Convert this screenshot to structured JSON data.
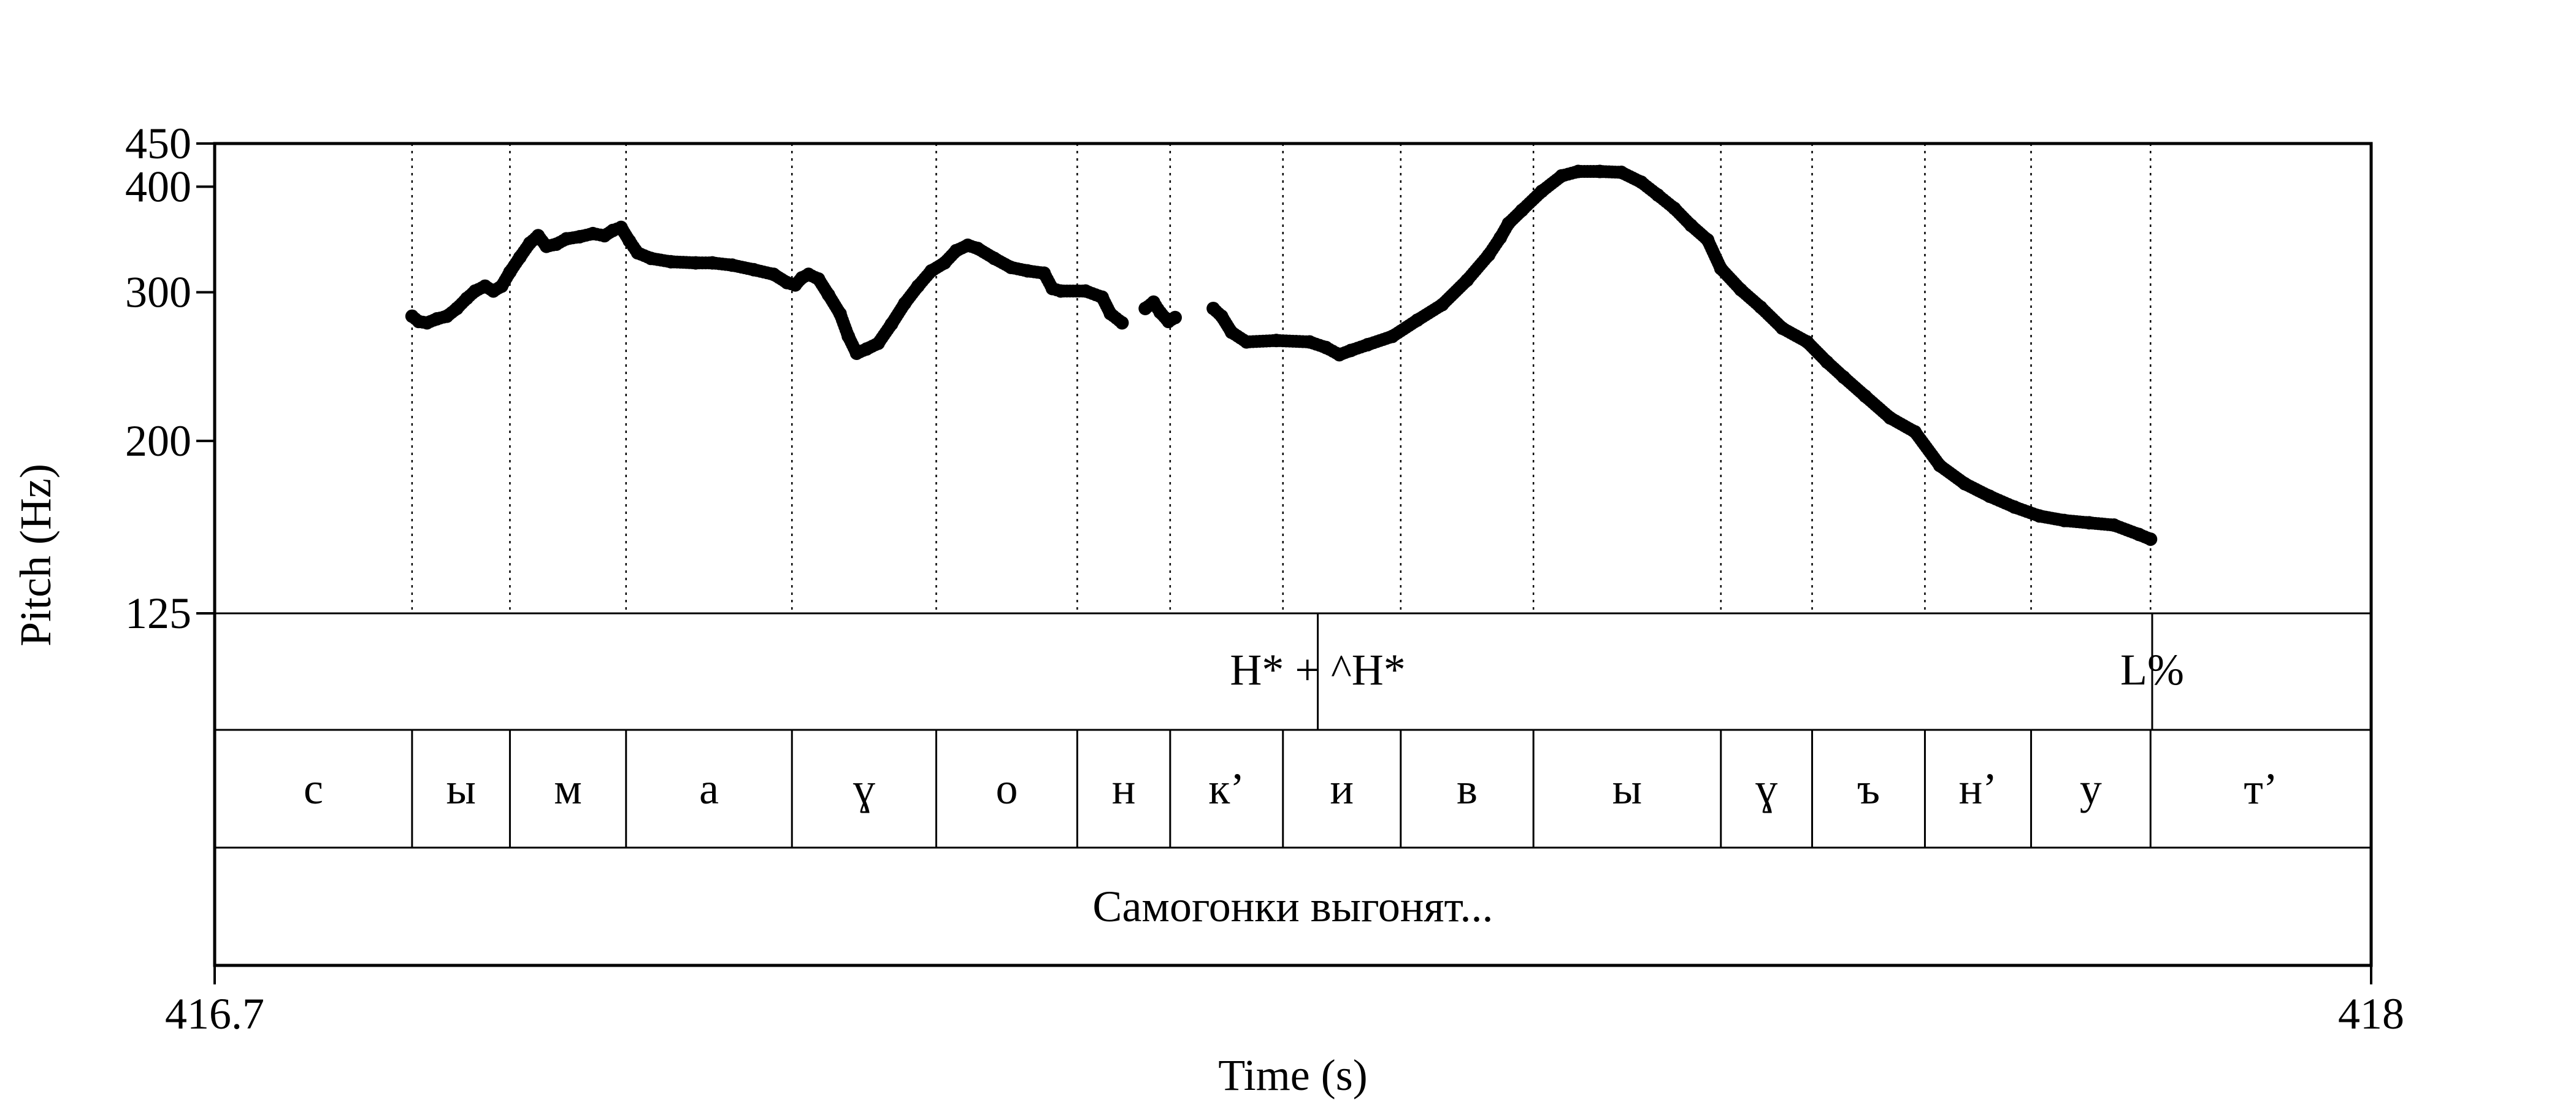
{
  "chart_data": {
    "type": "line",
    "style": "dotted pitch contour with TextGrid annotation tiers",
    "xlabel": "Time (s)",
    "ylabel": "Pitch (Hz)",
    "xlim": [
      416.7,
      418
    ],
    "x_tick_labels": [
      "416.7",
      "418"
    ],
    "ylim": [
      125,
      450
    ],
    "y_scale": "log",
    "y_ticks": [
      450,
      400,
      300,
      200,
      125
    ],
    "y_tick_labels": [
      "450",
      "400",
      "300",
      "200",
      "125"
    ],
    "grid": "dotted vertical lines at segment boundaries",
    "legend": "none",
    "series": [
      {
        "segments": [
          [
            [
              416.819,
              281
            ],
            [
              416.823,
              277
            ],
            [
              416.828,
              276
            ],
            [
              416.834,
              279
            ],
            [
              416.84,
              281
            ],
            [
              416.846,
              287
            ],
            [
              416.852,
              295
            ],
            [
              416.857,
              301
            ],
            [
              416.863,
              305
            ],
            [
              416.868,
              301
            ],
            [
              416.873,
              305
            ],
            [
              416.878,
              317
            ],
            [
              416.884,
              330
            ],
            [
              416.89,
              343
            ],
            [
              416.895,
              350
            ],
            [
              416.9,
              340
            ],
            [
              416.906,
              342
            ],
            [
              416.912,
              347
            ],
            [
              416.92,
              349
            ],
            [
              416.928,
              352
            ],
            [
              416.935,
              350
            ],
            [
              416.94,
              355
            ],
            [
              416.945,
              358
            ],
            [
              416.95,
              345
            ],
            [
              416.955,
              334
            ],
            [
              416.963,
              329
            ],
            [
              416.975,
              326
            ],
            [
              416.99,
              325
            ],
            [
              417.0,
              325
            ],
            [
              417.012,
              323
            ],
            [
              417.025,
              319
            ],
            [
              417.037,
              315
            ],
            [
              417.045,
              308
            ],
            [
              417.05,
              306
            ],
            [
              417.054,
              312
            ],
            [
              417.058,
              315
            ],
            [
              417.064,
              311
            ],
            [
              417.07,
              298
            ],
            [
              417.077,
              283
            ],
            [
              417.082,
              266
            ],
            [
              417.087,
              254
            ],
            [
              417.093,
              257
            ],
            [
              417.1,
              261
            ],
            [
              417.108,
              275
            ],
            [
              417.116,
              291
            ],
            [
              417.124,
              305
            ],
            [
              417.132,
              318
            ],
            [
              417.14,
              325
            ],
            [
              417.147,
              336
            ],
            [
              417.154,
              341
            ],
            [
              417.16,
              338
            ],
            [
              417.17,
              329
            ],
            [
              417.18,
              321
            ],
            [
              417.19,
              318
            ],
            [
              417.2,
              316
            ],
            [
              417.205,
              303
            ],
            [
              417.21,
              301
            ],
            [
              417.225,
              301
            ],
            [
              417.235,
              296
            ],
            [
              417.24,
              283
            ],
            [
              417.247,
              276
            ]
          ]
        ],
        "points_segment2": [
          [
            417.261,
            287
          ],
          [
            417.266,
            292
          ],
          [
            417.27,
            284
          ],
          [
            417.275,
            277
          ],
          [
            417.279,
            280
          ]
        ],
        "segment3": [
          [
            417.302,
            287
          ],
          [
            417.307,
            281
          ],
          [
            417.313,
            269
          ],
          [
            417.322,
            262
          ],
          [
            417.34,
            263
          ],
          [
            417.36,
            262
          ],
          [
            417.37,
            258
          ],
          [
            417.378,
            253
          ],
          [
            417.385,
            256
          ],
          [
            417.395,
            260
          ],
          [
            417.41,
            266
          ],
          [
            417.425,
            278
          ],
          [
            417.44,
            290
          ],
          [
            417.455,
            310
          ],
          [
            417.468,
            332
          ],
          [
            417.475,
            348
          ],
          [
            417.48,
            362
          ],
          [
            417.488,
            375
          ],
          [
            417.5,
            395
          ],
          [
            417.512,
            412
          ],
          [
            417.522,
            417
          ],
          [
            417.535,
            417
          ],
          [
            417.548,
            416
          ],
          [
            417.56,
            405
          ],
          [
            417.57,
            391
          ],
          [
            417.58,
            377
          ],
          [
            417.59,
            360
          ],
          [
            417.6,
            346
          ],
          [
            417.608,
            320
          ],
          [
            417.62,
            302
          ],
          [
            417.632,
            288
          ],
          [
            417.645,
            272
          ],
          [
            417.66,
            262
          ],
          [
            417.672,
            248
          ],
          [
            417.682,
            238
          ],
          [
            417.695,
            226
          ],
          [
            417.71,
            213
          ],
          [
            417.725,
            205
          ],
          [
            417.74,
            187
          ],
          [
            417.755,
            178
          ],
          [
            417.77,
            172
          ],
          [
            417.785,
            167
          ],
          [
            417.8,
            163
          ],
          [
            417.815,
            161
          ],
          [
            417.83,
            160
          ],
          [
            417.845,
            159
          ],
          [
            417.86,
            155
          ],
          [
            417.867,
            153
          ]
        ]
      }
    ],
    "tiers": [
      {
        "name": "tones",
        "points": [
          {
            "time": 417.365,
            "label": "H* + ^H*"
          },
          {
            "time": 417.868,
            "label": "L%"
          }
        ]
      },
      {
        "name": "segments",
        "boundaries": [
          416.7,
          416.819,
          416.878,
          416.948,
          417.048,
          417.135,
          417.22,
          417.276,
          417.344,
          417.415,
          417.495,
          417.608,
          417.663,
          417.731,
          417.795,
          417.867,
          418.0
        ],
        "labels": [
          "с",
          "ы",
          "м",
          "а",
          "ɣ",
          "о",
          "н",
          "к’",
          "и",
          "в",
          "ы",
          "ɣ",
          "ъ",
          "н’",
          "у",
          "т’"
        ]
      },
      {
        "name": "words",
        "intervals": [
          {
            "start": 416.7,
            "end": 418.0,
            "label": "Самогонки выгонят..."
          }
        ]
      }
    ]
  }
}
